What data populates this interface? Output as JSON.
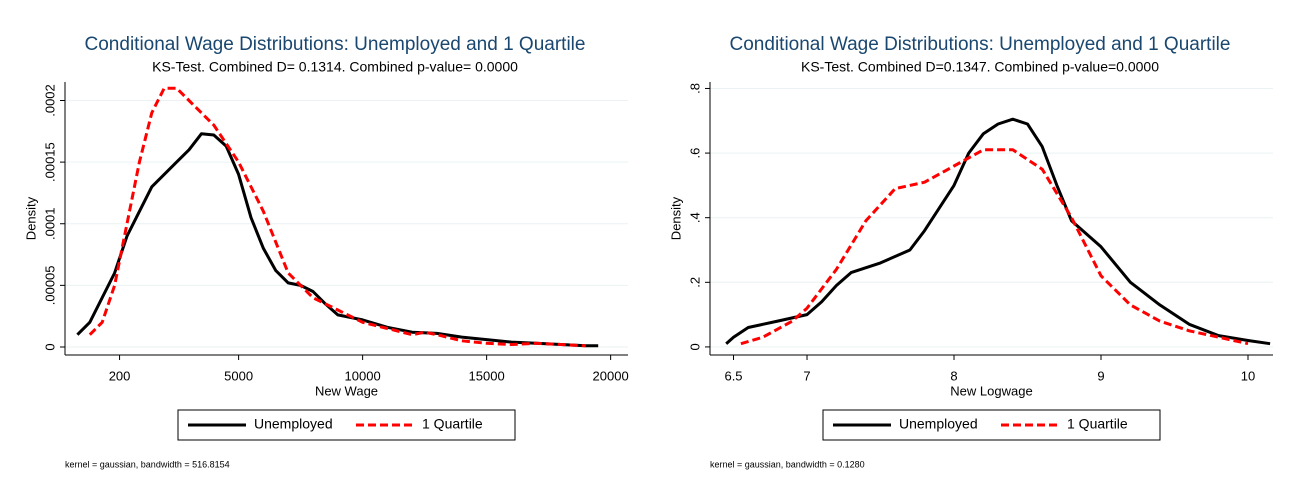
{
  "chart_data": [
    {
      "type": "line",
      "title": "Conditional Wage Distributions: Unemployed and 1 Quartile",
      "subtitle": "KS-Test. Combined D= 0.1314. Combined p-value= 0.0000",
      "x_label": "New Wage",
      "y_label": "Density",
      "note": "kernel = gaussian, bandwidth = 516.8154",
      "xlim": [
        -2000,
        20700
      ],
      "ylim": [
        -6.5e-06,
        0.000215
      ],
      "xticks": [
        200,
        5000,
        10000,
        15000,
        20000
      ],
      "yticks": [
        0,
        {
          "value": 5e-05,
          "label": ".00005"
        },
        {
          "value": 0.0001,
          "label": ".0001"
        },
        {
          "value": 0.00015,
          "label": ".00015"
        },
        {
          "value": 0.0002,
          "label": ".0002"
        }
      ],
      "grid": true,
      "series": [
        {
          "name": "Unemployed",
          "color": "#000000",
          "dash": false,
          "x": [
            -1500,
            -1000,
            0,
            500,
            1000,
            1500,
            2000,
            2500,
            3000,
            3500,
            4000,
            4500,
            5000,
            5500,
            6000,
            6500,
            7000,
            7500,
            8000,
            8500,
            9000,
            10000,
            11000,
            12000,
            13000,
            14000,
            15000,
            16000,
            17000,
            18000,
            19000,
            19500
          ],
          "values": [
            1e-05,
            2e-05,
            6e-05,
            9e-05,
            0.00011,
            0.00013,
            0.00014,
            0.00015,
            0.00016,
            0.000173,
            0.000172,
            0.000163,
            0.00014,
            0.000105,
            8e-05,
            6.2e-05,
            5.2e-05,
            5e-05,
            4.5e-05,
            3.5e-05,
            2.6e-05,
            2.2e-05,
            1.6e-05,
            1.2e-05,
            1.1e-05,
            8e-06,
            6e-06,
            4e-06,
            3e-06,
            2e-06,
            1e-06,
            1e-06
          ]
        },
        {
          "name": "1 Quartile",
          "color": "#ff0000",
          "dash": true,
          "x": [
            -1000,
            -500,
            0,
            500,
            1000,
            1500,
            2000,
            2500,
            3000,
            3500,
            4000,
            5000,
            6000,
            7000,
            8000,
            9000,
            10000,
            11000,
            12000,
            12500,
            13000,
            14000,
            15000,
            16000,
            17000,
            18000,
            19000
          ],
          "values": [
            1e-05,
            2e-05,
            5e-05,
            0.0001,
            0.00015,
            0.00019,
            0.00021,
            0.00021,
            0.0002,
            0.00019,
            0.00018,
            0.00015,
            0.00011,
            6e-05,
            4e-05,
            3e-05,
            2e-05,
            1.5e-05,
            1e-05,
            1.2e-05,
            1e-05,
            5e-06,
            3e-06,
            2e-06,
            3e-06,
            2e-06,
            1e-06
          ]
        }
      ]
    },
    {
      "type": "line",
      "title": "Conditional Wage Distributions: Unemployed and 1 Quartile",
      "subtitle": "KS-Test. Combined D=0.1347. Combined p-value=0.0000",
      "x_label": "New Logwage",
      "y_label": "Density",
      "note": "kernel = gaussian, bandwidth = 0.1280",
      "xlim": [
        6.34,
        10.17
      ],
      "ylim": [
        -0.025,
        0.82
      ],
      "xticks": [
        6.5,
        7,
        8,
        9,
        10
      ],
      "yticks": [
        0,
        {
          "value": 0.2,
          "label": ".2"
        },
        {
          "value": 0.4,
          "label": ".4"
        },
        {
          "value": 0.6,
          "label": ".6"
        },
        {
          "value": 0.8,
          "label": ".8"
        }
      ],
      "grid": true,
      "series": [
        {
          "name": "Unemployed",
          "color": "#000000",
          "dash": false,
          "x": [
            6.45,
            6.5,
            6.6,
            6.8,
            7.0,
            7.1,
            7.2,
            7.3,
            7.5,
            7.7,
            7.8,
            8.0,
            8.1,
            8.2,
            8.3,
            8.4,
            8.5,
            8.6,
            8.7,
            8.8,
            9.0,
            9.2,
            9.4,
            9.6,
            9.8,
            10.0,
            10.15
          ],
          "values": [
            0.01,
            0.03,
            0.06,
            0.08,
            0.1,
            0.14,
            0.19,
            0.23,
            0.26,
            0.3,
            0.36,
            0.5,
            0.6,
            0.66,
            0.69,
            0.705,
            0.69,
            0.62,
            0.5,
            0.39,
            0.31,
            0.2,
            0.13,
            0.07,
            0.035,
            0.02,
            0.01
          ]
        },
        {
          "name": "1 Quartile",
          "color": "#ff0000",
          "dash": true,
          "x": [
            6.55,
            6.7,
            6.9,
            7.0,
            7.2,
            7.4,
            7.6,
            7.8,
            8.0,
            8.2,
            8.4,
            8.6,
            8.8,
            9.0,
            9.2,
            9.4,
            9.6,
            9.8,
            10.0
          ],
          "values": [
            0.01,
            0.03,
            0.08,
            0.12,
            0.24,
            0.39,
            0.49,
            0.51,
            0.56,
            0.61,
            0.61,
            0.55,
            0.4,
            0.22,
            0.13,
            0.08,
            0.05,
            0.03,
            0.01
          ]
        }
      ]
    }
  ]
}
